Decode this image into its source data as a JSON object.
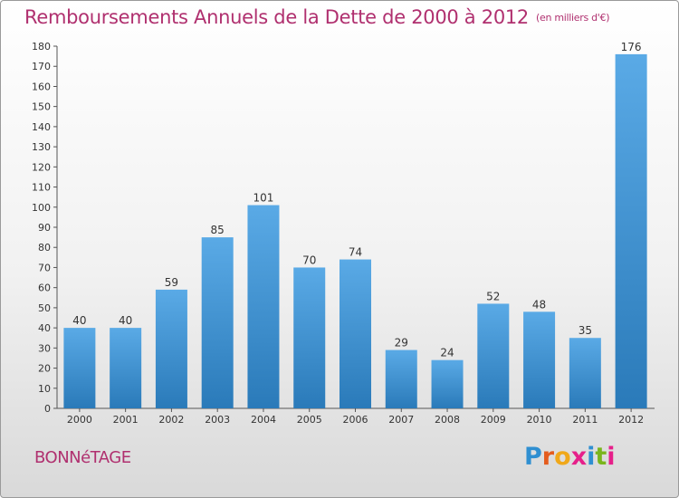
{
  "header": {
    "title": "Remboursements Annuels de la Dette de 2000 à 2012",
    "subtitle": "(en milliers d'€)"
  },
  "footer": {
    "commune": "BONNéTAGE",
    "logo_text": "Proxiti"
  },
  "colors": {
    "title": "#b0306f",
    "bar_top": "#5aaae6",
    "bar_bottom": "#2a7ab9",
    "logo": [
      "#2f8fd1",
      "#e45c1e",
      "#f0a81a",
      "#e6208a",
      "#2f8fd1",
      "#7ab51d",
      "#e6208a"
    ]
  },
  "chart_data": {
    "type": "bar",
    "categories": [
      "2000",
      "2001",
      "2002",
      "2003",
      "2004",
      "2005",
      "2006",
      "2007",
      "2008",
      "2009",
      "2010",
      "2011",
      "2012"
    ],
    "values": [
      40,
      40,
      59,
      85,
      101,
      70,
      74,
      29,
      24,
      52,
      48,
      35,
      176
    ],
    "title": "Remboursements Annuels de la Dette de 2000 à 2012",
    "xlabel": "",
    "ylabel": "",
    "ylim": [
      0,
      180
    ],
    "yticks": [
      0,
      10,
      20,
      30,
      40,
      50,
      60,
      70,
      80,
      90,
      100,
      110,
      120,
      130,
      140,
      150,
      160,
      170,
      180
    ],
    "grid": false,
    "legend": "none"
  }
}
